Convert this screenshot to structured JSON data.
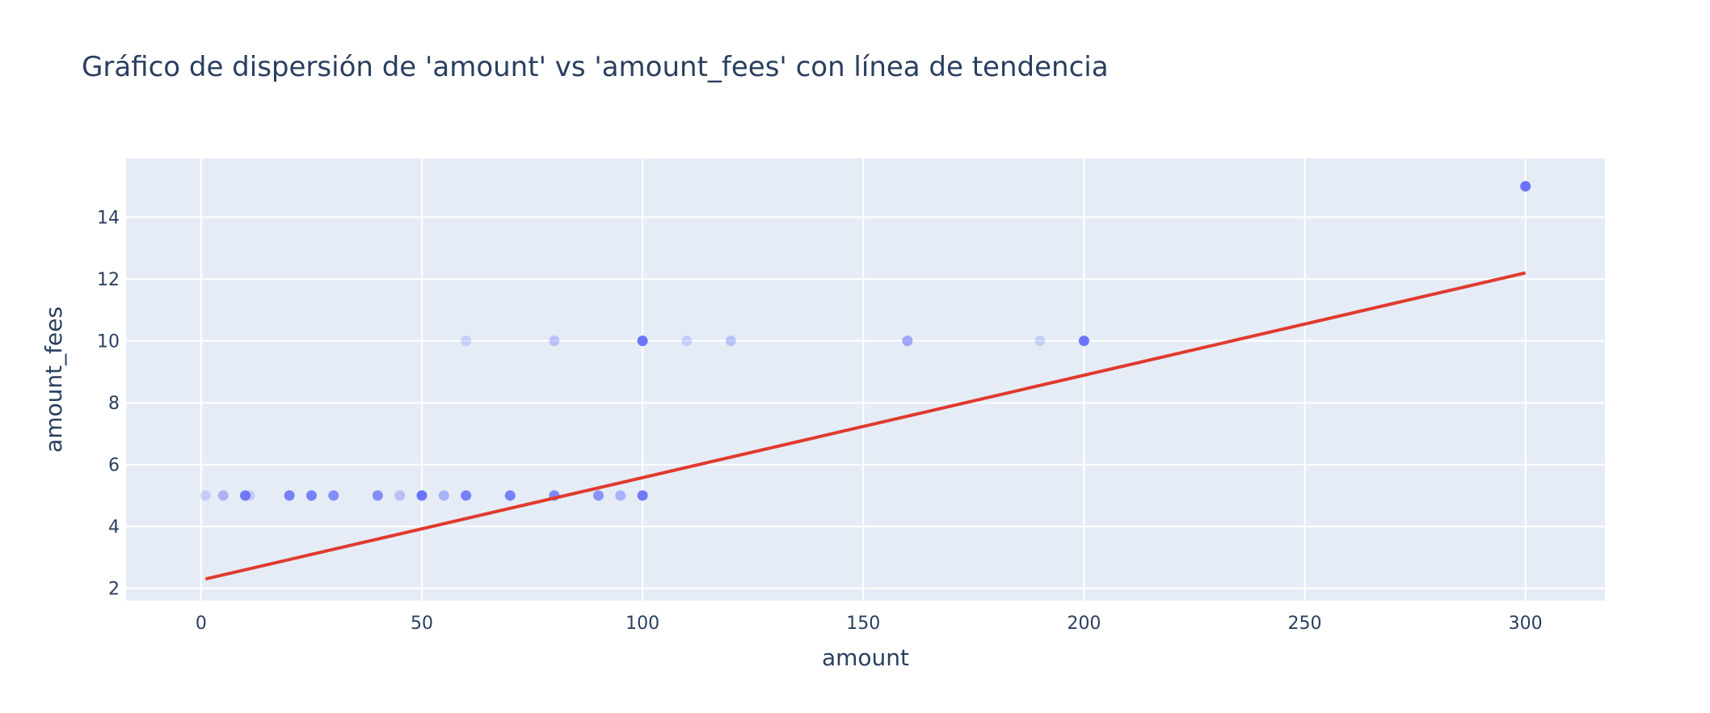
{
  "chart_data": {
    "type": "scatter",
    "title": "Gráfico de dispersión de 'amount' vs 'amount_fees' con línea de tendencia",
    "xlabel": "amount",
    "ylabel": "amount_fees",
    "xlim": [
      -17,
      318
    ],
    "ylim": [
      1.6,
      15.9
    ],
    "x_ticks": [
      0,
      50,
      100,
      150,
      200,
      250,
      300
    ],
    "y_ticks": [
      2,
      4,
      6,
      8,
      10,
      12,
      14
    ],
    "grid": true,
    "legend": "none",
    "colors": {
      "background": "#e5ecf6",
      "marker": "#636efa",
      "trendline": "#e03a2e",
      "text": "#2a3f5f"
    },
    "series": [
      {
        "type": "scatter",
        "points": [
          {
            "x": 1,
            "y": 5,
            "opacity": 0.25
          },
          {
            "x": 5,
            "y": 5,
            "opacity": 0.45
          },
          {
            "x": 10,
            "y": 5,
            "opacity": 0.9
          },
          {
            "x": 11,
            "y": 5,
            "opacity": 0.25
          },
          {
            "x": 20,
            "y": 5,
            "opacity": 0.85
          },
          {
            "x": 25,
            "y": 5,
            "opacity": 0.85
          },
          {
            "x": 30,
            "y": 5,
            "opacity": 0.75
          },
          {
            "x": 40,
            "y": 5,
            "opacity": 0.75
          },
          {
            "x": 45,
            "y": 5,
            "opacity": 0.35
          },
          {
            "x": 50,
            "y": 5,
            "opacity": 0.95
          },
          {
            "x": 55,
            "y": 5,
            "opacity": 0.45
          },
          {
            "x": 60,
            "y": 5,
            "opacity": 0.85
          },
          {
            "x": 60,
            "y": 10,
            "opacity": 0.25
          },
          {
            "x": 70,
            "y": 5,
            "opacity": 0.85
          },
          {
            "x": 80,
            "y": 5,
            "opacity": 0.8
          },
          {
            "x": 80,
            "y": 10,
            "opacity": 0.35
          },
          {
            "x": 90,
            "y": 5,
            "opacity": 0.7
          },
          {
            "x": 95,
            "y": 5,
            "opacity": 0.45
          },
          {
            "x": 100,
            "y": 5,
            "opacity": 0.9
          },
          {
            "x": 100,
            "y": 10,
            "opacity": 0.95
          },
          {
            "x": 110,
            "y": 10,
            "opacity": 0.25
          },
          {
            "x": 120,
            "y": 10,
            "opacity": 0.35
          },
          {
            "x": 160,
            "y": 10,
            "opacity": 0.55
          },
          {
            "x": 190,
            "y": 10,
            "opacity": 0.25
          },
          {
            "x": 200,
            "y": 10,
            "opacity": 0.95
          },
          {
            "x": 300,
            "y": 15,
            "opacity": 0.95
          }
        ]
      },
      {
        "type": "line",
        "points": [
          {
            "x": 1,
            "y": 2.3
          },
          {
            "x": 300,
            "y": 12.2
          }
        ]
      }
    ]
  }
}
